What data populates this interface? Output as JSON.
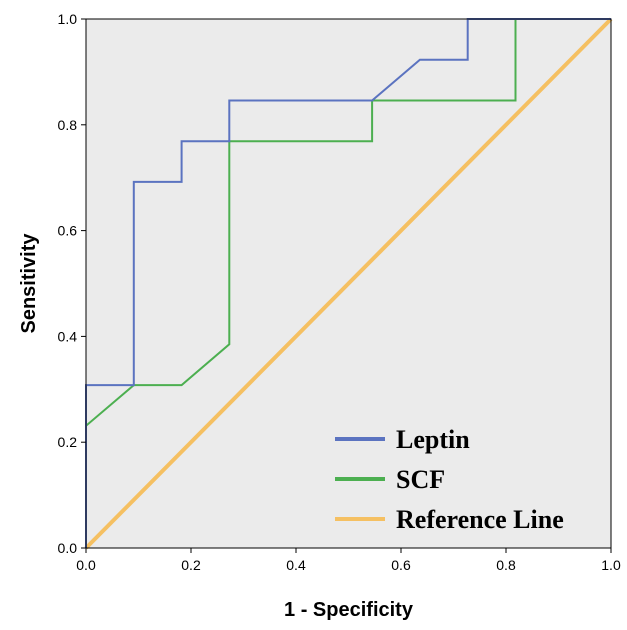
{
  "chart_data": {
    "type": "line",
    "title": "",
    "xlabel": "1 - Specificity",
    "ylabel": "Sensitivity",
    "xlim": [
      0,
      1
    ],
    "ylim": [
      0,
      1
    ],
    "x_ticks": [
      "0.0",
      "0.2",
      "0.4",
      "0.6",
      "0.8",
      "1.0"
    ],
    "y_ticks": [
      "0.0",
      "0.2",
      "0.4",
      "0.6",
      "0.8",
      "1.0"
    ],
    "grid": false,
    "plot_background": "#ebebeb",
    "legend_position": "bottom-right",
    "series": [
      {
        "name": "Leptin",
        "color": "#5b73c0",
        "x": [
          0,
          0,
          0.091,
          0.091,
          0.182,
          0.182,
          0.273,
          0.273,
          0.545,
          0.636,
          0.727,
          0.727,
          1.0
        ],
        "y": [
          0,
          0.308,
          0.308,
          0.692,
          0.692,
          0.769,
          0.769,
          0.846,
          0.846,
          0.923,
          0.923,
          1.0,
          1.0
        ]
      },
      {
        "name": "SCF",
        "color": "#4caf50",
        "x": [
          0,
          0,
          0.091,
          0.182,
          0.273,
          0.273,
          0.545,
          0.545,
          0.818,
          0.818,
          1.0
        ],
        "y": [
          0,
          0.231,
          0.308,
          0.308,
          0.385,
          0.769,
          0.769,
          0.846,
          0.846,
          1.0,
          1.0
        ]
      },
      {
        "name": "Reference Line",
        "color": "#f5c062",
        "x": [
          0,
          1
        ],
        "y": [
          0,
          1
        ]
      }
    ]
  }
}
